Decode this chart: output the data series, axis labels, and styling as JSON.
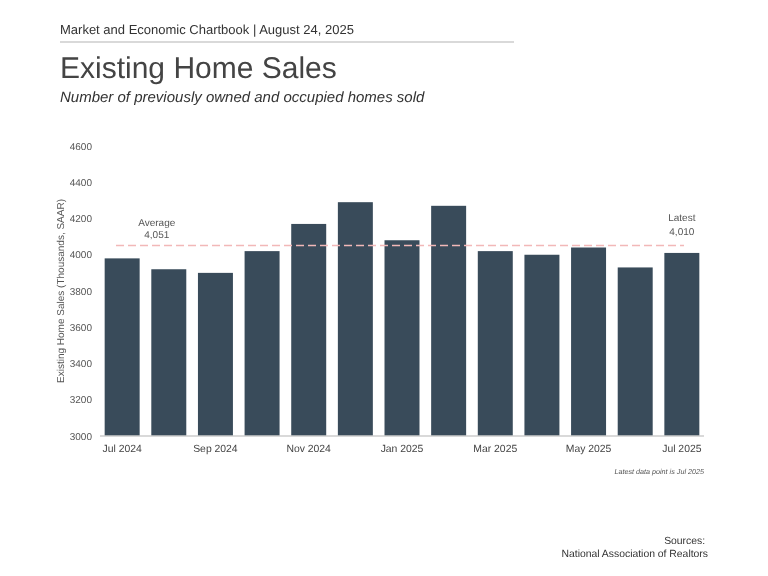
{
  "chart_data": {
    "type": "bar",
    "title": "Existing Home Sales",
    "subtitle": "Number of previously owned and occupied homes sold",
    "ylabel": "Existing Home Sales (Thousands, SAAR)",
    "categories": [
      "Jul 2024",
      null,
      "Sep 2024",
      null,
      "Nov 2024",
      null,
      "Jan 2025",
      null,
      "Mar 2025",
      null,
      "May 2025",
      null,
      "Jul 2025"
    ],
    "values": [
      3980,
      3920,
      3900,
      4020,
      4170,
      4290,
      4080,
      4270,
      4020,
      4000,
      4040,
      3930,
      4010
    ],
    "color": "#394b5a",
    "ylim": [
      3000,
      4600
    ],
    "yticks": [
      3000,
      3200,
      3400,
      3600,
      3800,
      4000,
      4200,
      4400,
      4600
    ],
    "ref_lines": [
      {
        "axis": "y",
        "value": 4051,
        "label": "Average 4,051",
        "color": "#f2b8b8",
        "line_style": "dashed"
      }
    ],
    "annotations": [
      "Market and Economic Chartbook | August 24, 2025",
      {
        "text": "Latest 4,010",
        "x": "Jul 2025",
        "y": 4010
      },
      "Latest data point is Jul 2025",
      "Sources: National Association of Realtors"
    ]
  }
}
